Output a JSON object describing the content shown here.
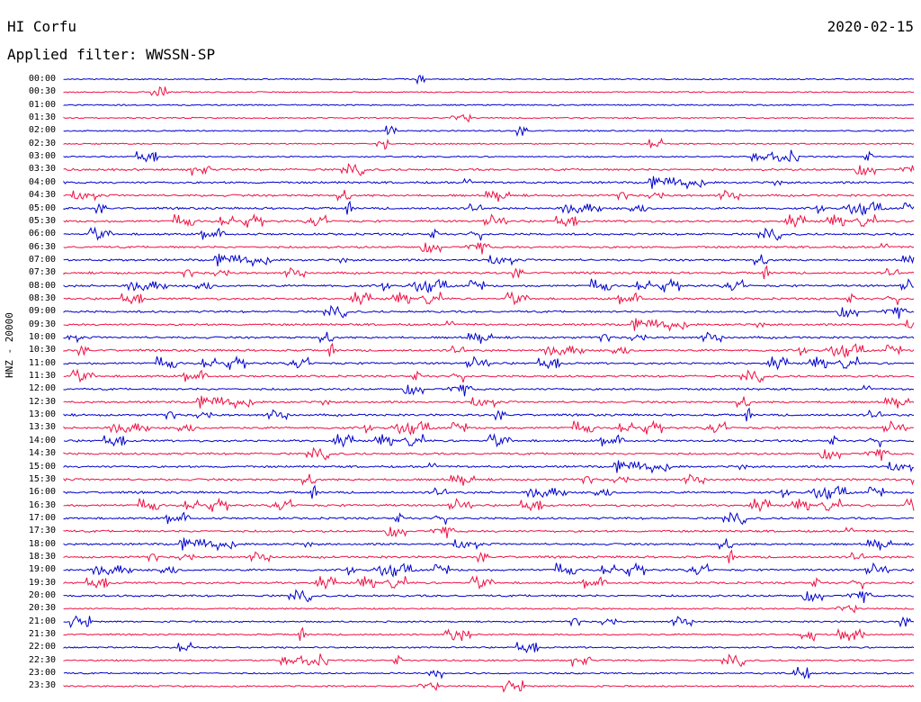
{
  "header": {
    "station": "HI Corfu",
    "date": "2020-02-15",
    "filter": "Applied filter: WWSSN-SP"
  },
  "axis": {
    "channel_label": "HNZ - 20000"
  },
  "colors": {
    "trace_a": "#0000cc",
    "trace_b": "#ee1144"
  },
  "rows": [
    "00:00",
    "00:30",
    "01:00",
    "01:30",
    "02:00",
    "02:30",
    "03:00",
    "03:30",
    "04:00",
    "04:30",
    "05:00",
    "05:30",
    "06:00",
    "06:30",
    "07:00",
    "07:30",
    "08:00",
    "08:30",
    "09:00",
    "09:30",
    "10:00",
    "10:30",
    "11:00",
    "11:30",
    "12:00",
    "12:30",
    "13:00",
    "13:30",
    "14:00",
    "14:30",
    "15:00",
    "15:30",
    "16:00",
    "16:30",
    "17:00",
    "17:30",
    "18:00",
    "18:30",
    "19:00",
    "19:30",
    "20:00",
    "20:30",
    "21:00",
    "21:30",
    "22:00",
    "22:30",
    "23:00",
    "23:30"
  ]
}
